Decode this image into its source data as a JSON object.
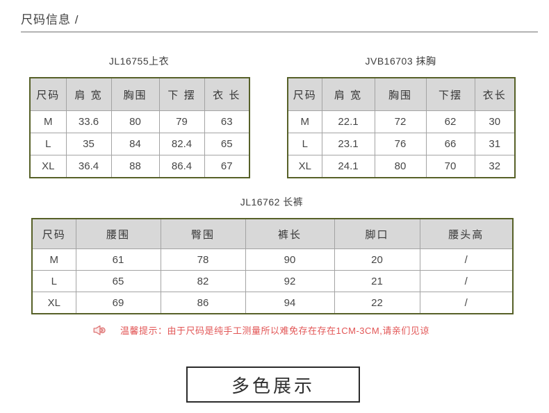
{
  "page": {
    "title": "尺码信息 /"
  },
  "tables": [
    {
      "title": "JL16755上衣",
      "headers": [
        "尺码",
        "肩 宽",
        "胸围",
        "下 摆",
        "衣 长"
      ],
      "rows": [
        [
          "M",
          "33.6",
          "80",
          "79",
          "63"
        ],
        [
          "L",
          "35",
          "84",
          "82.4",
          "65"
        ],
        [
          "XL",
          "36.4",
          "88",
          "86.4",
          "67"
        ]
      ]
    },
    {
      "title": "JVB16703 抹胸",
      "headers": [
        "尺码",
        "肩 宽",
        "胸围",
        "下摆",
        "衣长"
      ],
      "rows": [
        [
          "M",
          "22.1",
          "72",
          "62",
          "30"
        ],
        [
          "L",
          "23.1",
          "76",
          "66",
          "31"
        ],
        [
          "XL",
          "24.1",
          "80",
          "70",
          "32"
        ]
      ]
    },
    {
      "title": "JL16762 长裤",
      "headers": [
        "尺码",
        "腰围",
        "臀围",
        "裤长",
        "脚口",
        "腰头高"
      ],
      "rows": [
        [
          "M",
          "61",
          "78",
          "90",
          "20",
          "/"
        ],
        [
          "L",
          "65",
          "82",
          "92",
          "21",
          "/"
        ],
        [
          "XL",
          "69",
          "86",
          "94",
          "22",
          "/"
        ]
      ]
    }
  ],
  "notice": {
    "icon": "speaker-icon",
    "text": "温馨提示：由于尺码是纯手工测量所以难免存在存在1CM-3CM,请亲们见谅"
  },
  "footer": {
    "box_label": "多色展示"
  },
  "colors": {
    "table_outer_border": "#566027",
    "table_inner_border": "#a3a3a3",
    "header_bg": "#d8d8d8",
    "notice_red": "#e25555",
    "title_text": "#404040"
  }
}
